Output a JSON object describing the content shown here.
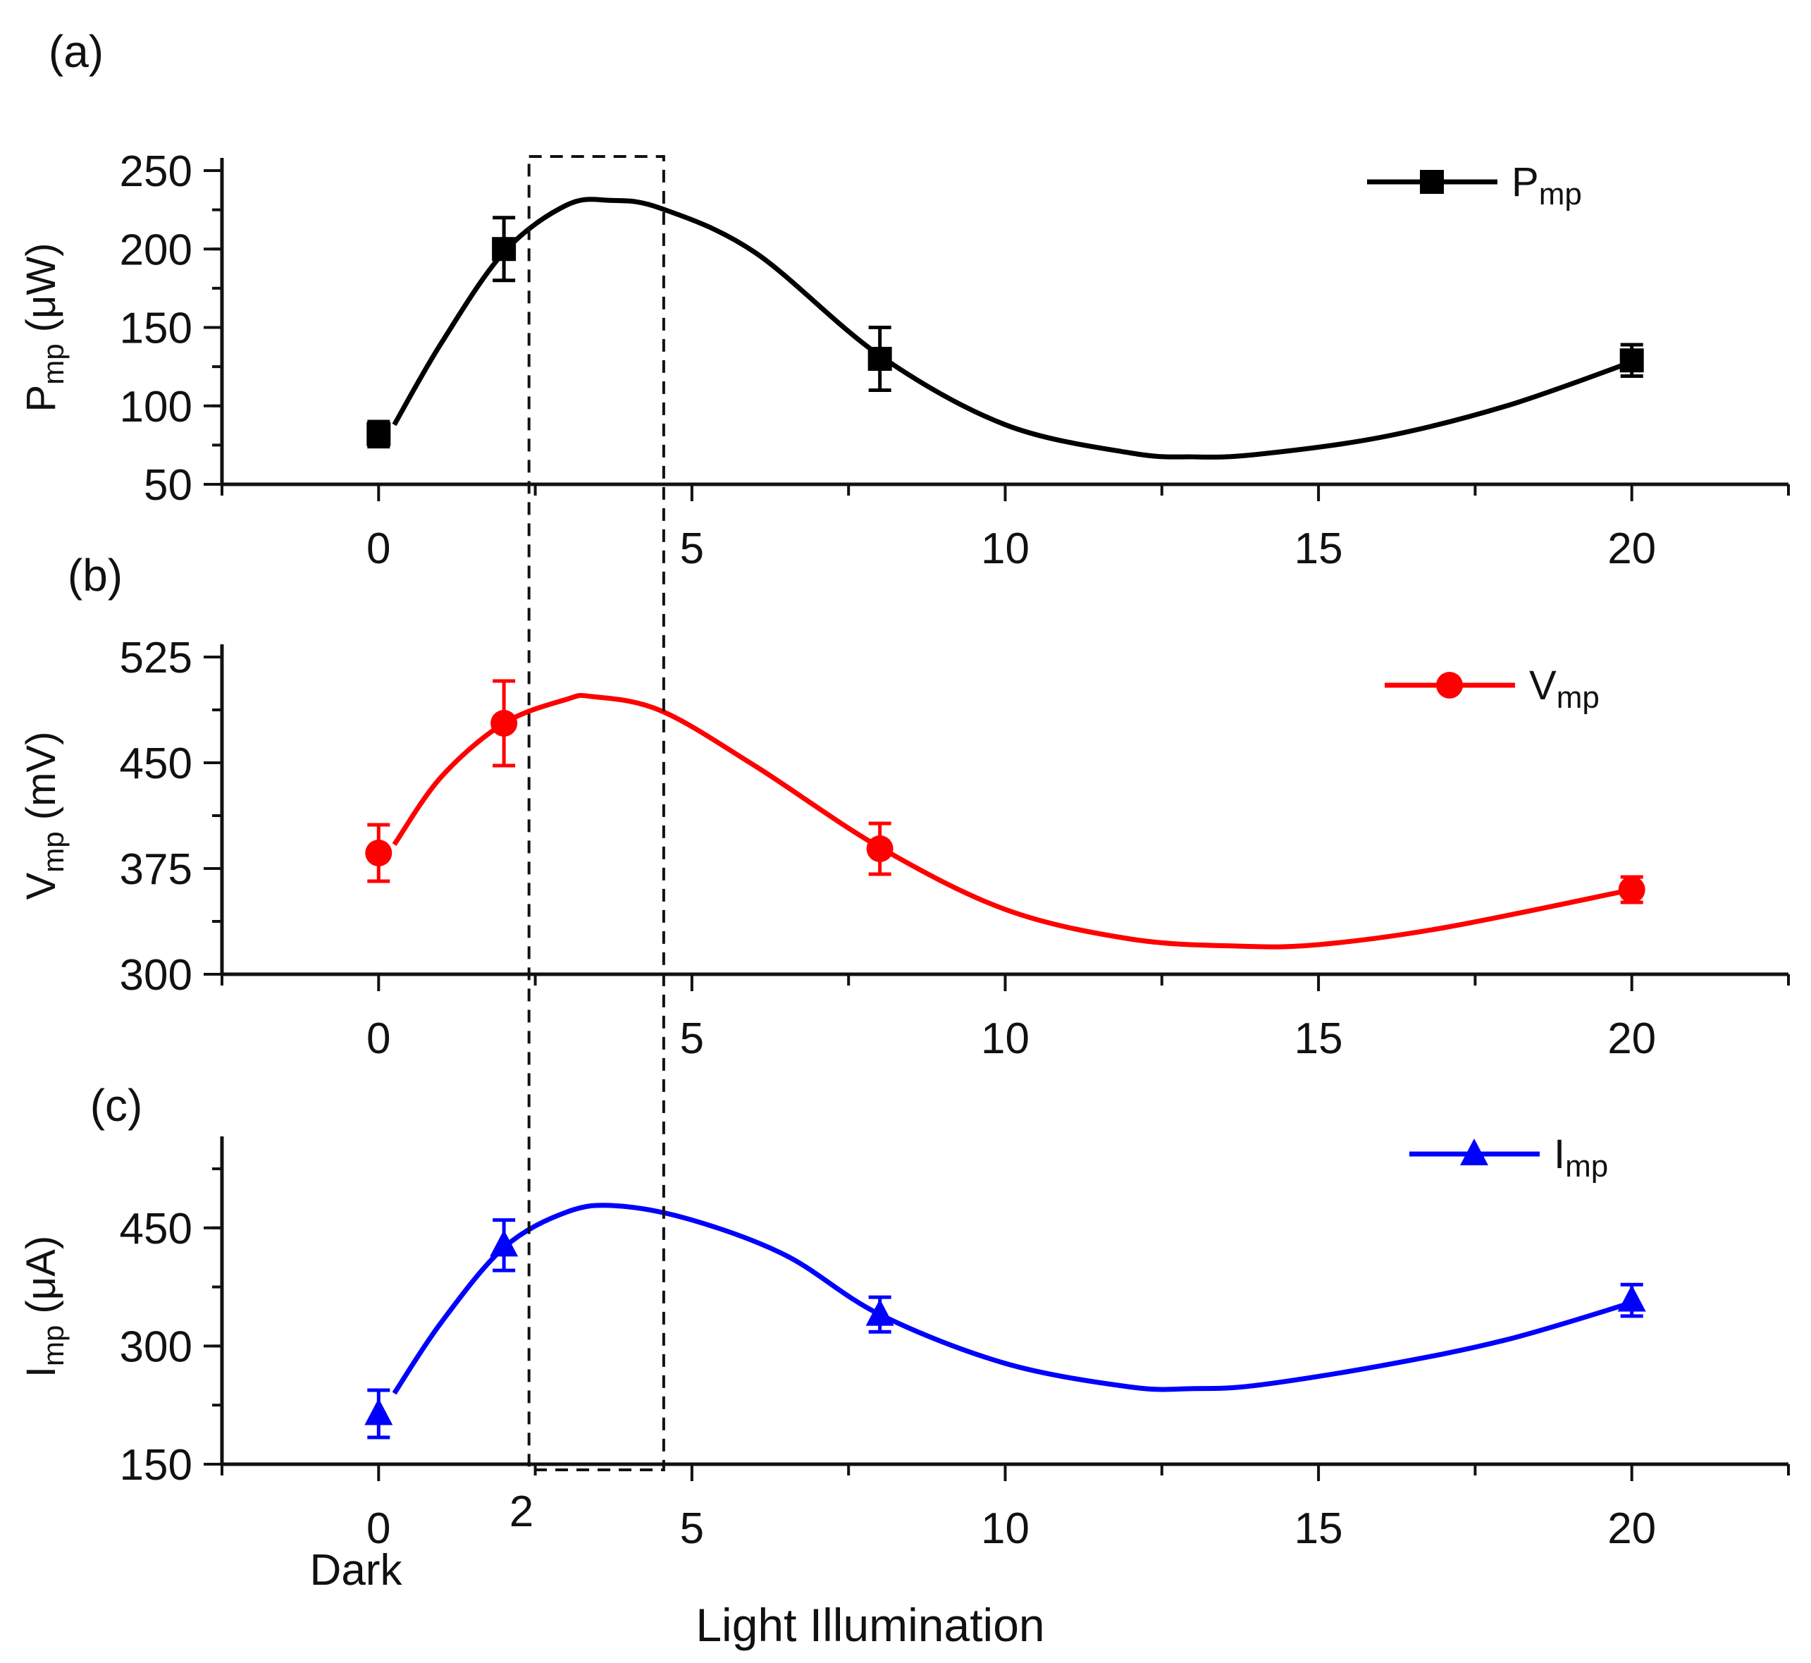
{
  "figure": {
    "x_axis_title": "Light Illumination",
    "extra_x_labels": {
      "dark": "Dark",
      "two": "2"
    }
  },
  "chart_data": [
    {
      "type": "line",
      "panel": "(a)",
      "ylabel": "P",
      "ylabel_sub": "mp",
      "ylabel_unit": " (μW)",
      "xlim": [
        -2.5,
        22.5
      ],
      "ylim": [
        50,
        250
      ],
      "yticks": [
        50,
        100,
        150,
        200,
        250
      ],
      "xticks": [
        0,
        5,
        10,
        15,
        20
      ],
      "color": "#000000",
      "marker": "square",
      "legend": {
        "label": "P",
        "sub": "mp"
      },
      "x": [
        0,
        2,
        8,
        20
      ],
      "values": [
        82,
        200,
        130,
        129
      ],
      "errors": [
        8,
        20,
        20,
        10
      ],
      "curve": [
        [
          0.25,
          88
        ],
        [
          1,
          140
        ],
        [
          2,
          198
        ],
        [
          3,
          228
        ],
        [
          3.7,
          231
        ],
        [
          4.5,
          226
        ],
        [
          6,
          198
        ],
        [
          8,
          132
        ],
        [
          10,
          88
        ],
        [
          12,
          70
        ],
        [
          13,
          67.5
        ],
        [
          14,
          69
        ],
        [
          16,
          80
        ],
        [
          18,
          100
        ],
        [
          20,
          128
        ]
      ]
    },
    {
      "type": "line",
      "panel": "(b)",
      "ylabel": "V",
      "ylabel_sub": "mp",
      "ylabel_unit": " (mV)",
      "xlim": [
        -2.5,
        22.5
      ],
      "ylim": [
        300,
        525
      ],
      "yticks": [
        300,
        375,
        450,
        525
      ],
      "xticks": [
        0,
        5,
        10,
        15,
        20
      ],
      "color": "#ff0000",
      "marker": "circle",
      "legend": {
        "label": "V",
        "sub": "mp"
      },
      "x": [
        0,
        2,
        8,
        20
      ],
      "values": [
        386,
        478,
        389,
        360
      ],
      "errors": [
        20,
        30,
        18,
        9
      ],
      "curve": [
        [
          0.25,
          392
        ],
        [
          1,
          440
        ],
        [
          2,
          478
        ],
        [
          3,
          495
        ],
        [
          3.4,
          497
        ],
        [
          4.5,
          487
        ],
        [
          6,
          448
        ],
        [
          8,
          390
        ],
        [
          10,
          346
        ],
        [
          12,
          325
        ],
        [
          13.7,
          320
        ],
        [
          15,
          321
        ],
        [
          17,
          333
        ],
        [
          20,
          360
        ]
      ]
    },
    {
      "type": "line",
      "panel": "(c)",
      "ylabel": "I",
      "ylabel_sub": "mp",
      "ylabel_unit": " (μA)",
      "xlim": [
        -2.5,
        22.5
      ],
      "ylim": [
        150,
        550
      ],
      "yticks": [
        150,
        300,
        450
      ],
      "xticks": [
        0,
        5,
        10,
        15,
        20
      ],
      "color": "#0000ff",
      "marker": "triangle",
      "legend": {
        "label": "I",
        "sub": "mp"
      },
      "x": [
        0,
        2,
        8,
        20
      ],
      "values": [
        214,
        428,
        340,
        358
      ],
      "errors": [
        30,
        32,
        22,
        20
      ],
      "curve": [
        [
          0.25,
          240
        ],
        [
          1,
          330
        ],
        [
          2,
          425
        ],
        [
          3,
          470
        ],
        [
          3.8,
          478
        ],
        [
          5,
          460
        ],
        [
          6.5,
          415
        ],
        [
          8,
          340
        ],
        [
          10,
          278
        ],
        [
          12,
          248
        ],
        [
          13,
          246
        ],
        [
          14,
          250
        ],
        [
          16,
          275
        ],
        [
          18,
          308
        ],
        [
          20,
          355
        ]
      ]
    }
  ],
  "highlight_box": {
    "x_range": [
      2.4,
      4.55
    ],
    "label": "dashed highlight region"
  }
}
